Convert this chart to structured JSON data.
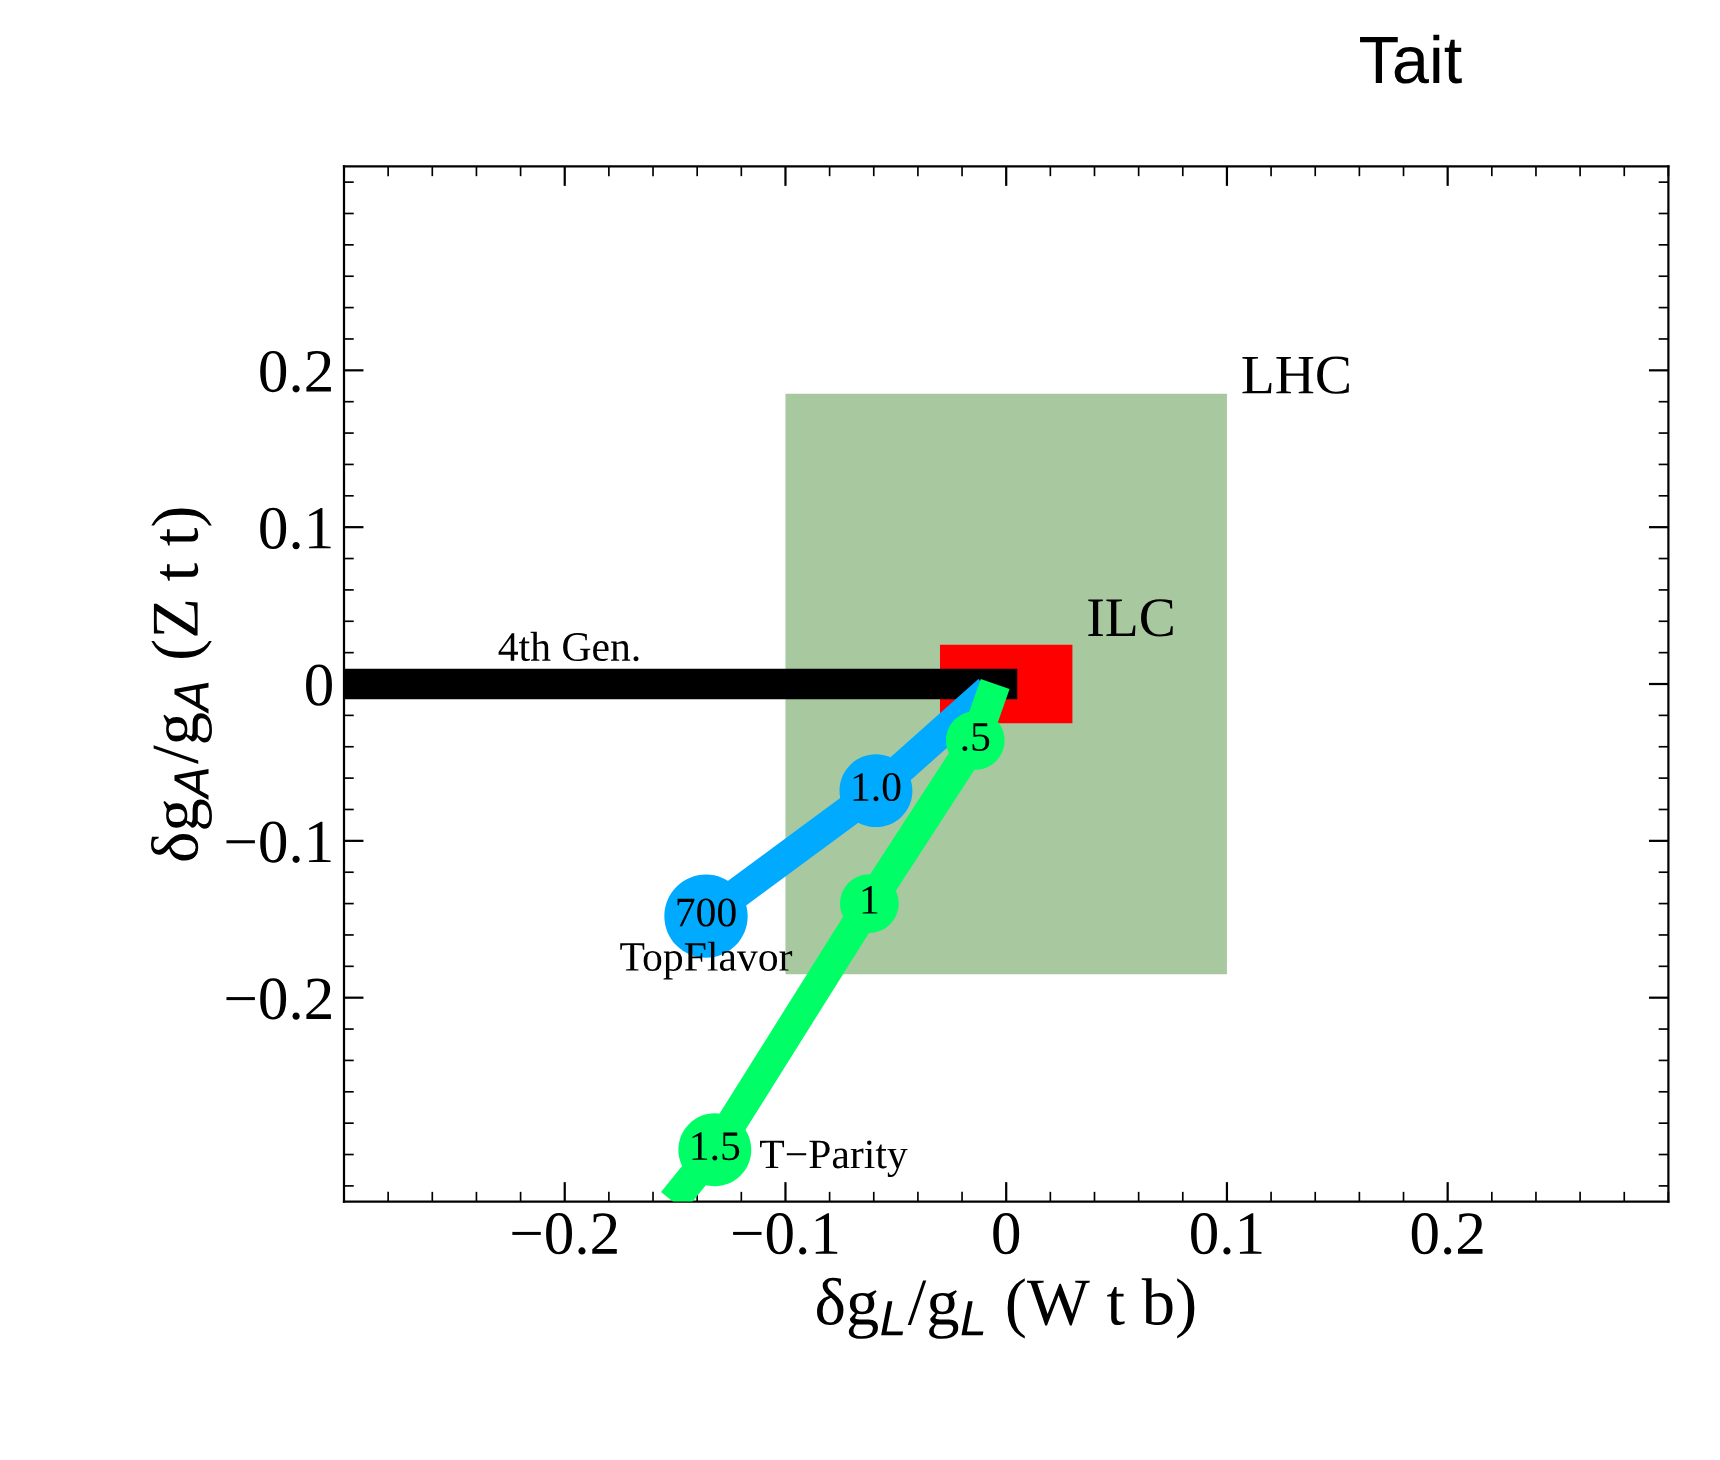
{
  "chart_data": {
    "type": "line",
    "title": "Tait",
    "xlabel": "δg$_{L}$/g$_{L}$ (W t b)",
    "ylabel": "δg$_{A}$/g$_{A}$ (Z t t)",
    "xlim": [
      -0.3,
      0.3
    ],
    "ylim": [
      -0.33,
      0.33
    ],
    "xticks": [
      -0.2,
      -0.1,
      0,
      0.1,
      0.2
    ],
    "yticks": [
      -0.2,
      -0.1,
      0,
      0.1,
      0.2
    ],
    "grid": false,
    "legend": false,
    "series": [
      {
        "name": "LHC",
        "type": "area",
        "color": "#a8c8a0",
        "x": [
          -0.1,
          -0.1,
          0.1,
          0.1
        ],
        "values": [
          -0.185,
          0.185,
          0.185,
          -0.185
        ]
      },
      {
        "name": "ILC",
        "type": "area",
        "color": "#ff0000",
        "x": [
          -0.03,
          -0.03,
          0.03,
          0.03
        ],
        "values": [
          -0.025,
          0.025,
          0.025,
          -0.025
        ]
      },
      {
        "name": "4th Gen.",
        "color": "#000000",
        "x": [
          -0.3,
          0.005
        ],
        "values": [
          0,
          0
        ]
      },
      {
        "name": "TopFlavor",
        "color": "#00aaff",
        "x": [
          -0.136,
          -0.059,
          -0.008
        ],
        "values": [
          -0.148,
          -0.068,
          -0.004
        ]
      },
      {
        "name": "T−Parity",
        "color": "#00ff66",
        "x": [
          -0.151,
          -0.132,
          -0.062,
          -0.014,
          -0.005
        ],
        "values": [
          -0.33,
          -0.297,
          -0.14,
          -0.036,
          0.0
        ]
      }
    ],
    "annotations": [
      {
        "text": "700",
        "x": -0.136,
        "y": -0.148
      },
      {
        "text": "1.0",
        "x": -0.059,
        "y": -0.068
      },
      {
        "text": "1.5",
        "x": -0.132,
        "y": -0.297
      },
      {
        "text": "1",
        "x": -0.062,
        "y": -0.14
      },
      {
        "text": ".5",
        "x": -0.014,
        "y": -0.036
      }
    ]
  }
}
